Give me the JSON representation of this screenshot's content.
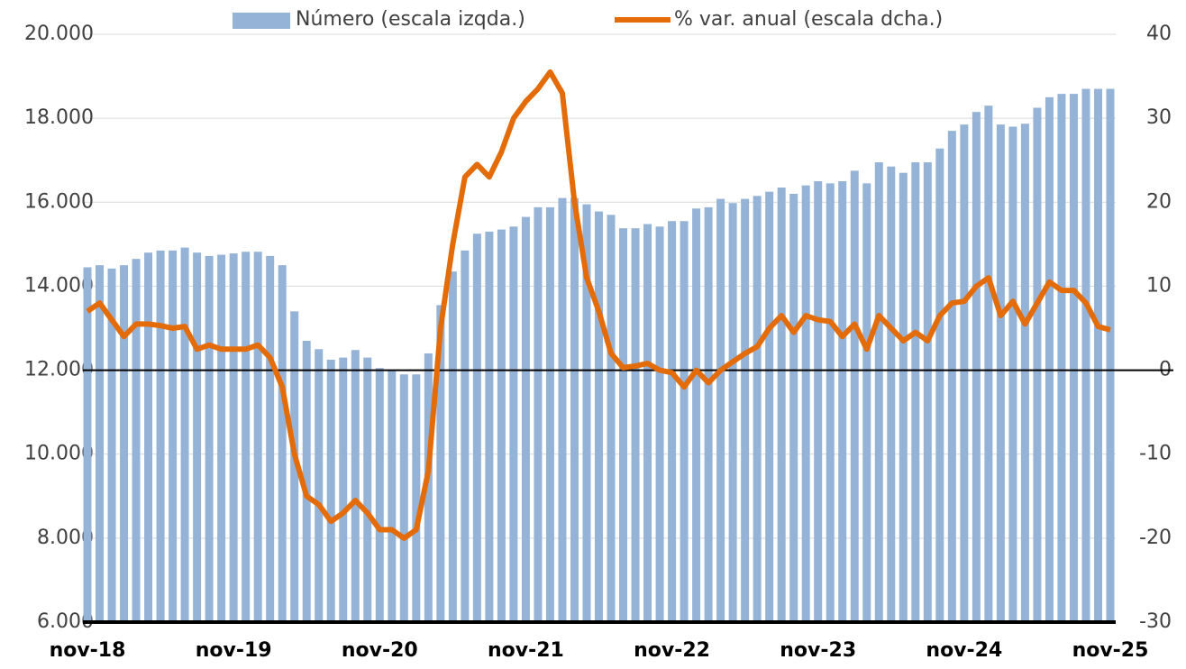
{
  "chart_data": {
    "type": "bar_line",
    "categories": [
      "nov-18",
      null,
      null,
      null,
      null,
      null,
      null,
      null,
      null,
      null,
      null,
      null,
      "nov-19",
      null,
      null,
      null,
      null,
      null,
      null,
      null,
      null,
      null,
      null,
      null,
      "nov-20",
      null,
      null,
      null,
      null,
      null,
      null,
      null,
      null,
      null,
      null,
      null,
      "nov-21",
      null,
      null,
      null,
      null,
      null,
      null,
      null,
      null,
      null,
      null,
      null,
      "nov-22",
      null,
      null,
      null,
      null,
      null,
      null,
      null,
      null,
      null,
      null,
      null,
      "nov-23",
      null,
      null,
      null,
      null,
      null,
      null,
      null,
      null,
      null,
      null,
      null,
      "nov-24",
      null,
      null,
      null,
      null,
      null,
      null,
      null,
      null,
      null,
      null,
      null,
      "nov-25"
    ],
    "series": [
      {
        "name": "Número (escala izqda.)",
        "color": "#95b3d7",
        "kind": "bar",
        "values": [
          14450,
          14500,
          14420,
          14500,
          14650,
          14800,
          14850,
          14850,
          14920,
          14800,
          14720,
          14750,
          14780,
          14820,
          14820,
          14720,
          14500,
          13400,
          12700,
          12500,
          12250,
          12300,
          12480,
          12300,
          12050,
          12000,
          11900,
          11900,
          12400,
          13550,
          14350,
          14850,
          15250,
          15300,
          15350,
          15420,
          15650,
          15880,
          15880,
          16100,
          16100,
          15950,
          15780,
          15700,
          15380,
          15380,
          15480,
          15420,
          15550,
          15550,
          15850,
          15880,
          16080,
          15980,
          16080,
          16150,
          16250,
          16350,
          16200,
          16400,
          16500,
          16450,
          16500,
          16750,
          16450,
          16950,
          16850,
          16700,
          16950,
          16950,
          17280,
          17700,
          17850,
          18150,
          18300,
          17850,
          17800,
          17870,
          18250,
          18500,
          18580,
          18580,
          18700,
          18700,
          18700
        ]
      },
      {
        "name": "% var. anual (escala dcha.)",
        "color": "#e36c09",
        "kind": "line",
        "axis": "y2",
        "values": [
          7,
          8,
          6,
          4,
          5.5,
          5.5,
          5.3,
          5,
          5.2,
          2.5,
          3,
          2.5,
          2.5,
          2.5,
          3,
          1.5,
          -2,
          -10,
          -15,
          -16,
          -18,
          -17,
          -15.5,
          -17,
          -19,
          -19,
          -20,
          -19,
          -12,
          5,
          15,
          23,
          24.5,
          23,
          26,
          30,
          32,
          33.5,
          35.5,
          33,
          20,
          11,
          7,
          2,
          0.3,
          0.5,
          0.8,
          0,
          -0.3,
          -2,
          0,
          -1.5,
          0,
          1,
          2,
          2.8,
          5,
          6.5,
          4.5,
          6.5,
          6,
          5.8,
          4,
          5.5,
          2.5,
          6.5,
          5,
          3.5,
          4.5,
          3.5,
          6.5,
          8,
          8.2,
          10,
          11,
          6.5,
          8.2,
          5.5,
          8,
          10.5,
          9.5,
          9.5,
          8,
          5.2,
          4.8
        ]
      }
    ],
    "ylim": [
      6000,
      20000
    ],
    "yticks": [
      {
        "value": 6000,
        "label": "6.000"
      },
      {
        "value": 8000,
        "label": "8.000"
      },
      {
        "value": 10000,
        "label": "10.000"
      },
      {
        "value": 12000,
        "label": "12.000"
      },
      {
        "value": 14000,
        "label": "14.000"
      },
      {
        "value": 16000,
        "label": "16.000"
      },
      {
        "value": 18000,
        "label": "18.000"
      },
      {
        "value": 20000,
        "label": "20.000"
      }
    ],
    "y2lim": [
      -30,
      40
    ],
    "y2ticks": [
      -30,
      -20,
      -10,
      0,
      10,
      20,
      30,
      40
    ],
    "grid": true
  }
}
